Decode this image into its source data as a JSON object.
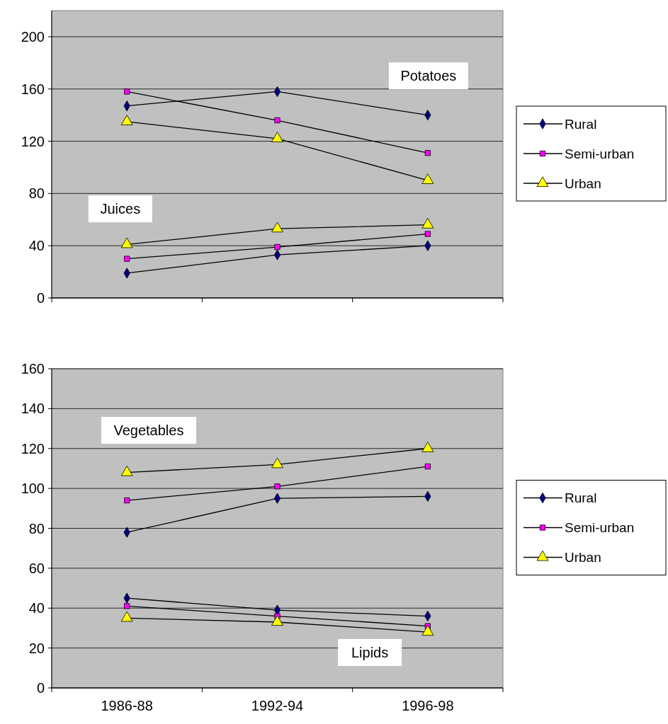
{
  "chart_data": [
    {
      "type": "line",
      "categories": [
        null,
        null,
        null
      ],
      "ylim": [
        0,
        220
      ],
      "yticks": [
        0,
        40,
        80,
        120,
        160,
        200
      ],
      "grid": "y",
      "legend": "right",
      "annotations": [
        "Potatoes",
        "Juices"
      ],
      "series": [
        {
          "name": "Rural",
          "color": "#000080",
          "marker": "diamond",
          "values": [
            147,
            158,
            140
          ]
        },
        {
          "name": "Semi-urban",
          "color": "#ff00ff",
          "marker": "square",
          "values": [
            158,
            136,
            111
          ]
        },
        {
          "name": "Urban",
          "color": "#ffff00",
          "marker": "triangle",
          "values": [
            135,
            122,
            90
          ]
        },
        {
          "color": "#000080",
          "marker": "diamond",
          "values": [
            19,
            33,
            40
          ]
        },
        {
          "color": "#ff00ff",
          "marker": "square",
          "values": [
            30,
            39,
            49
          ]
        },
        {
          "color": "#ffff00",
          "marker": "triangle",
          "values": [
            41,
            53,
            56
          ]
        }
      ]
    },
    {
      "type": "line",
      "categories": [
        "1986-88",
        "1992-94",
        "1996-98"
      ],
      "ylim": [
        0,
        160
      ],
      "yticks": [
        0,
        20,
        40,
        60,
        80,
        100,
        120,
        140,
        160
      ],
      "grid": "y",
      "legend": "right",
      "annotations": [
        "Vegetables",
        "Lipids"
      ],
      "series": [
        {
          "name": "Rural",
          "color": "#000080",
          "marker": "diamond",
          "values": [
            78,
            95,
            96
          ]
        },
        {
          "name": "Semi-urban",
          "color": "#ff00ff",
          "marker": "square",
          "values": [
            94,
            101,
            111
          ]
        },
        {
          "name": "Urban",
          "color": "#ffff00",
          "marker": "triangle",
          "values": [
            108,
            112,
            120
          ]
        },
        {
          "color": "#000080",
          "marker": "diamond",
          "values": [
            45,
            39,
            36
          ]
        },
        {
          "color": "#ff00ff",
          "marker": "square",
          "values": [
            41,
            36,
            31
          ]
        },
        {
          "color": "#ffff00",
          "marker": "triangle",
          "values": [
            35,
            33,
            28
          ]
        }
      ]
    }
  ]
}
